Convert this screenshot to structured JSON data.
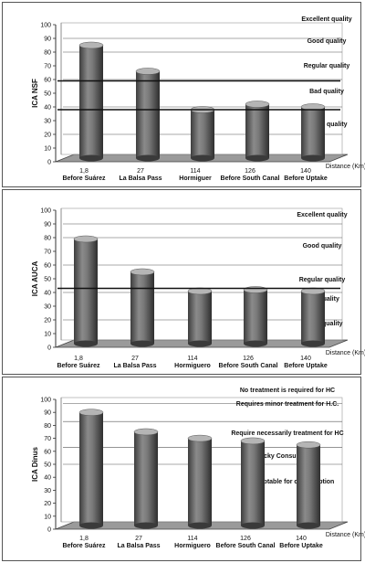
{
  "chart_data": [
    {
      "type": "bar",
      "ylabel": "ICA NSF",
      "xlabel": "Distance (Km)",
      "ylim": [
        0,
        100
      ],
      "yticks": [
        0,
        10,
        20,
        30,
        40,
        50,
        60,
        70,
        80,
        90,
        100
      ],
      "x": [
        "1,8",
        "27",
        "114",
        "126",
        "140"
      ],
      "categories": [
        "Before Suárez",
        "La Balsa Pass",
        "Hormiguer",
        "Before South Canal",
        "Before Uptake"
      ],
      "values": [
        85,
        66,
        38,
        42,
        40
      ],
      "reference_lines": [
        38,
        59
      ],
      "zones": [
        "Excellent quality",
        "Good quality",
        "Regular quality",
        "Bad quality",
        "Loucy quality"
      ],
      "bar_color": "#6b6b6b",
      "grid": false
    },
    {
      "type": "bar",
      "ylabel": "ICA AUCA",
      "xlabel": "Distance (Km)",
      "ylim": [
        0,
        100
      ],
      "yticks": [
        0,
        10,
        20,
        30,
        40,
        50,
        60,
        70,
        80,
        90,
        100
      ],
      "x": [
        "1,8",
        "27",
        "114",
        "126",
        "140"
      ],
      "categories": [
        "Before Suárez",
        "La Balsa Pass",
        "Hormiguero",
        "Before South Canal",
        "Before Uptake"
      ],
      "values": [
        79,
        55,
        41,
        42,
        41
      ],
      "reference_lines": [
        43
      ],
      "zones": [
        "Excellent quality",
        "Good quality",
        "Regular quality",
        "Bad quality",
        "Loucy quality"
      ],
      "bar_color": "#6b6b6b",
      "grid": false
    },
    {
      "type": "bar",
      "ylabel": "ICA Dinus",
      "xlabel": "Distance (Km)",
      "ylim": [
        0,
        100
      ],
      "yticks": [
        0,
        10,
        20,
        30,
        40,
        50,
        60,
        70,
        80,
        90,
        100
      ],
      "x": [
        "1,8",
        "27",
        "114",
        "126",
        "140"
      ],
      "categories": [
        "Before Suárez",
        "La Balsa Pass",
        "Hormiguero",
        "Before South Canal",
        "Before Uptake"
      ],
      "values": [
        90,
        75,
        70,
        68,
        65
      ],
      "reference_lines": [],
      "zones": [
        "No treatment is required for HC",
        "Requires minor treatment for H.C.",
        "Require necessarily treatment for HC",
        "Ricky Consumption",
        "Unacceptable for consumption"
      ],
      "bar_color": "#6b6b6b",
      "grid": false
    }
  ]
}
